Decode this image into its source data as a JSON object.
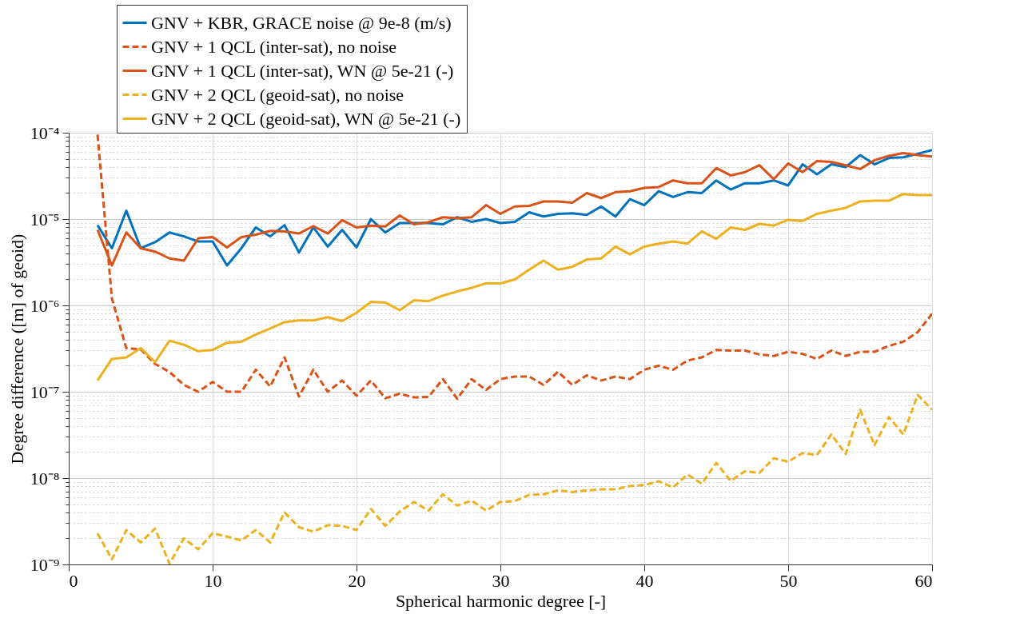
{
  "chart_data": {
    "type": "line",
    "xlabel": "Spherical harmonic degree [-]",
    "ylabel": "Degree difference ([m] of geoid)",
    "x": [
      2,
      3,
      4,
      5,
      6,
      7,
      8,
      9,
      10,
      11,
      12,
      13,
      14,
      15,
      16,
      17,
      18,
      19,
      20,
      21,
      22,
      23,
      24,
      25,
      26,
      27,
      28,
      29,
      30,
      31,
      32,
      33,
      34,
      35,
      36,
      37,
      38,
      39,
      40,
      41,
      42,
      43,
      44,
      45,
      46,
      47,
      48,
      49,
      50,
      51,
      52,
      53,
      54,
      55,
      56,
      57,
      58,
      59,
      60
    ],
    "series": [
      {
        "name": "GNV + KBR, GRACE noise @ 9e-8 (m/s)",
        "color": "#0072bd",
        "line_style": "solid",
        "values": [
          8.5e-06,
          4.6e-06,
          1.25e-05,
          4.6e-06,
          5.4e-06,
          7e-06,
          6.3e-06,
          5.5e-06,
          5.5e-06,
          2.9e-06,
          4.6e-06,
          8e-06,
          6.3e-06,
          8.5e-06,
          4.1e-06,
          8e-06,
          4.8e-06,
          7.5e-06,
          4.7e-06,
          1e-05,
          7e-06,
          9e-06,
          9e-06,
          9e-06,
          8.7e-06,
          1.05e-05,
          9.3e-06,
          1e-05,
          9e-06,
          9.3e-06,
          1.2e-05,
          1.07e-05,
          1.15e-05,
          1.17e-05,
          1.12e-05,
          1.4e-05,
          1.07e-05,
          1.7e-05,
          1.45e-05,
          2.1e-05,
          1.8e-05,
          2.05e-05,
          2e-05,
          2.8e-05,
          2.2e-05,
          2.6e-05,
          2.6e-05,
          2.8e-05,
          2.45e-05,
          4.3e-05,
          3.3e-05,
          4.3e-05,
          4e-05,
          5.5e-05,
          4.3e-05,
          5.1e-05,
          5.2e-05,
          5.7e-05,
          6.3e-05
        ]
      },
      {
        "name": "GNV + 1 QCL (inter-sat), no noise",
        "color": "#d95319",
        "line_style": "dashed",
        "values": [
          9.5e-05,
          1.2e-06,
          3.2e-07,
          3.1e-07,
          2.1e-07,
          1.7e-07,
          1.2e-07,
          1e-07,
          1.3e-07,
          1e-07,
          1e-07,
          1.8e-07,
          1.15e-07,
          2.5e-07,
          8.8e-08,
          1.8e-07,
          1e-07,
          1.35e-07,
          9e-08,
          1.35e-07,
          8.4e-08,
          9.5e-08,
          8.6e-08,
          8.7e-08,
          1.4e-07,
          8.3e-08,
          1.4e-07,
          1.05e-07,
          1.4e-07,
          1.5e-07,
          1.5e-07,
          1.2e-07,
          1.7e-07,
          1.2e-07,
          1.55e-07,
          1.35e-07,
          1.5e-07,
          1.4e-07,
          1.8e-07,
          2e-07,
          1.8e-07,
          2.3e-07,
          2.5e-07,
          3.05e-07,
          3e-07,
          3e-07,
          2.7e-07,
          2.6e-07,
          2.9e-07,
          2.75e-07,
          2.4e-07,
          3e-07,
          2.6e-07,
          2.9e-07,
          2.9e-07,
          3.4e-07,
          3.8e-07,
          4.9e-07,
          8e-07
        ]
      },
      {
        "name": "GNV + 1 QCL (inter-sat), WN @ 5e-21 (-)",
        "color": "#d95319",
        "line_style": "solid",
        "values": [
          7.5e-06,
          2.9e-06,
          7e-06,
          4.6e-06,
          4.2e-06,
          3.5e-06,
          3.3e-06,
          6e-06,
          6.2e-06,
          4.7e-06,
          6.2e-06,
          6.6e-06,
          7.3e-06,
          7.2e-06,
          6.8e-06,
          8.3e-06,
          6.8e-06,
          9.7e-06,
          8e-06,
          8.4e-06,
          8.2e-06,
          1.1e-05,
          8.7e-06,
          9.2e-06,
          1.05e-05,
          1.02e-05,
          1.05e-05,
          1.45e-05,
          1.15e-05,
          1.4e-05,
          1.42e-05,
          1.6e-05,
          1.6e-05,
          1.55e-05,
          2e-05,
          1.75e-05,
          2.05e-05,
          2.1e-05,
          2.3e-05,
          2.35e-05,
          2.8e-05,
          2.6e-05,
          2.6e-05,
          3.9e-05,
          3.2e-05,
          3.5e-05,
          4.2e-05,
          2.9e-05,
          4.4e-05,
          3.5e-05,
          4.7e-05,
          4.6e-05,
          4.2e-05,
          3.8e-05,
          4.8e-05,
          5.4e-05,
          5.8e-05,
          5.5e-05,
          5.3e-05
        ]
      },
      {
        "name": "GNV + 2 QCL (geoid-sat), no noise",
        "color": "#edb120",
        "line_style": "dashed",
        "values": [
          2.3e-09,
          1.15e-09,
          2.5e-09,
          1.8e-09,
          2.6e-09,
          1.02e-09,
          2e-09,
          1.5e-09,
          2.3e-09,
          2.1e-09,
          1.9e-09,
          2.5e-09,
          1.8e-09,
          4e-09,
          2.7e-09,
          2.4e-09,
          2.85e-09,
          2.8e-09,
          2.5e-09,
          4.4e-09,
          2.8e-09,
          4.1e-09,
          5.3e-09,
          4.2e-09,
          6.5e-09,
          4.8e-09,
          5.5e-09,
          4.2e-09,
          5.3e-09,
          5.4e-09,
          6.4e-09,
          6.5e-09,
          7.2e-09,
          6.9e-09,
          7.2e-09,
          7.4e-09,
          7.4e-09,
          8.1e-09,
          8.3e-09,
          9.2e-09,
          7.8e-09,
          1.1e-08,
          8.6e-09,
          1.5e-08,
          9.3e-09,
          1.2e-08,
          1.15e-08,
          1.7e-08,
          1.55e-08,
          1.95e-08,
          1.85e-08,
          3.2e-08,
          1.9e-08,
          6.2e-08,
          2.4e-08,
          5.1e-08,
          3.2e-08,
          9.2e-08,
          6.2e-08
        ]
      },
      {
        "name": "GNV + 2 QCL (geoid-sat), WN @ 5e-21 (-)",
        "color": "#edb120",
        "line_style": "solid",
        "values": [
          1.35e-07,
          2.4e-07,
          2.5e-07,
          3.2e-07,
          2.2e-07,
          3.9e-07,
          3.5e-07,
          2.95e-07,
          3.05e-07,
          3.7e-07,
          3.8e-07,
          4.6e-07,
          5.4e-07,
          6.4e-07,
          6.7e-07,
          6.7e-07,
          7.3e-07,
          6.6e-07,
          8.2e-07,
          1.1e-06,
          1.08e-06,
          8.8e-07,
          1.15e-06,
          1.12e-06,
          1.3e-06,
          1.45e-06,
          1.6e-06,
          1.8e-06,
          1.8e-06,
          2e-06,
          2.6e-06,
          3.3e-06,
          2.6e-06,
          2.8e-06,
          3.4e-06,
          3.5e-06,
          4.8e-06,
          3.9e-06,
          4.8e-06,
          5.2e-06,
          5.5e-06,
          5.2e-06,
          7.2e-06,
          5.9e-06,
          8e-06,
          7.5e-06,
          8.8e-06,
          8.4e-06,
          9.8e-06,
          9.5e-06,
          1.15e-05,
          1.25e-05,
          1.35e-05,
          1.6e-05,
          1.63e-05,
          1.63e-05,
          1.95e-05,
          1.9e-05,
          1.9e-05
        ]
      }
    ],
    "xlim": [
      0,
      60
    ],
    "xticks": [
      0,
      10,
      20,
      30,
      40,
      50,
      60
    ],
    "ylim": [
      1e-09,
      0.0001
    ],
    "log": true,
    "yticks": [
      {
        "value": 1e-09,
        "label": "10⁻⁹"
      },
      {
        "value": 2e-09,
        "label": null
      },
      {
        "value": 3e-09,
        "label": null
      },
      {
        "value": 4e-09,
        "label": null
      },
      {
        "value": 5e-09,
        "label": null
      },
      {
        "value": 6e-09,
        "label": null
      },
      {
        "value": 7e-09,
        "label": null
      },
      {
        "value": 8e-09,
        "label": null
      },
      {
        "value": 9e-09,
        "label": null
      },
      {
        "value": 1e-08,
        "label": "10⁻⁸"
      },
      {
        "value": 2e-08,
        "label": null
      },
      {
        "value": 3e-08,
        "label": null
      },
      {
        "value": 4e-08,
        "label": null
      },
      {
        "value": 5e-08,
        "label": null
      },
      {
        "value": 6e-08,
        "label": null
      },
      {
        "value": 7e-08,
        "label": null
      },
      {
        "value": 8e-08,
        "label": null
      },
      {
        "value": 9e-08,
        "label": null
      },
      {
        "value": 1e-07,
        "label": "10⁻⁷"
      },
      {
        "value": 2e-07,
        "label": null
      },
      {
        "value": 3e-07,
        "label": null
      },
      {
        "value": 4e-07,
        "label": null
      },
      {
        "value": 5e-07,
        "label": null
      },
      {
        "value": 6e-07,
        "label": null
      },
      {
        "value": 7e-07,
        "label": null
      },
      {
        "value": 8e-07,
        "label": null
      },
      {
        "value": 9e-07,
        "label": null
      },
      {
        "value": 1e-06,
        "label": "10⁻⁶"
      },
      {
        "value": 2e-06,
        "label": null
      },
      {
        "value": 3e-06,
        "label": null
      },
      {
        "value": 4e-06,
        "label": null
      },
      {
        "value": 5e-06,
        "label": null
      },
      {
        "value": 6e-06,
        "label": null
      },
      {
        "value": 7e-06,
        "label": null
      },
      {
        "value": 8e-06,
        "label": null
      },
      {
        "value": 9e-06,
        "label": null
      },
      {
        "value": 1e-05,
        "label": "10⁻⁵"
      },
      {
        "value": 2e-05,
        "label": null
      },
      {
        "value": 3e-05,
        "label": null
      },
      {
        "value": 4e-05,
        "label": null
      },
      {
        "value": 5e-05,
        "label": null
      },
      {
        "value": 6e-05,
        "label": null
      },
      {
        "value": 7e-05,
        "label": null
      },
      {
        "value": 8e-05,
        "label": null
      },
      {
        "value": 9e-05,
        "label": null
      },
      {
        "value": 0.0001,
        "label": "10⁻⁴"
      }
    ],
    "grid": true,
    "legend": "top left",
    "marker": "none"
  }
}
